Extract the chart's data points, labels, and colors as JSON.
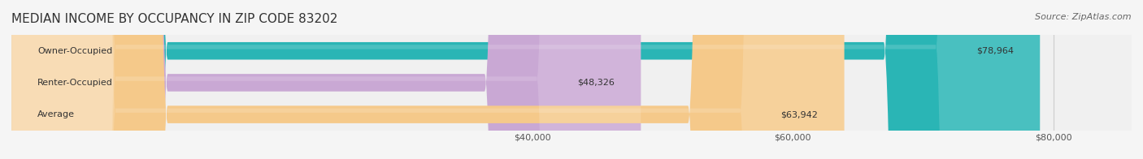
{
  "title": "MEDIAN INCOME BY OCCUPANCY IN ZIP CODE 83202",
  "source": "Source: ZipAtlas.com",
  "categories": [
    "Owner-Occupied",
    "Renter-Occupied",
    "Average"
  ],
  "values": [
    78964,
    48326,
    63942
  ],
  "value_labels": [
    "$78,964",
    "$48,326",
    "$63,942"
  ],
  "bar_colors": [
    "#2ab5b5",
    "#c9a8d4",
    "#f5c98a"
  ],
  "bar_edge_colors": [
    "#2ab5b5",
    "#c9a8d4",
    "#f5c98a"
  ],
  "xlim": [
    0,
    86000
  ],
  "xticks": [
    40000,
    60000,
    80000
  ],
  "xtick_labels": [
    "$40,000",
    "$60,000",
    "$80,000"
  ],
  "title_fontsize": 11,
  "source_fontsize": 8,
  "label_fontsize": 8,
  "value_fontsize": 8,
  "bg_color": "#f5f5f5",
  "plot_bg_color": "#f0f0f0",
  "bar_height": 0.55,
  "title_color": "#333333",
  "source_color": "#666666"
}
